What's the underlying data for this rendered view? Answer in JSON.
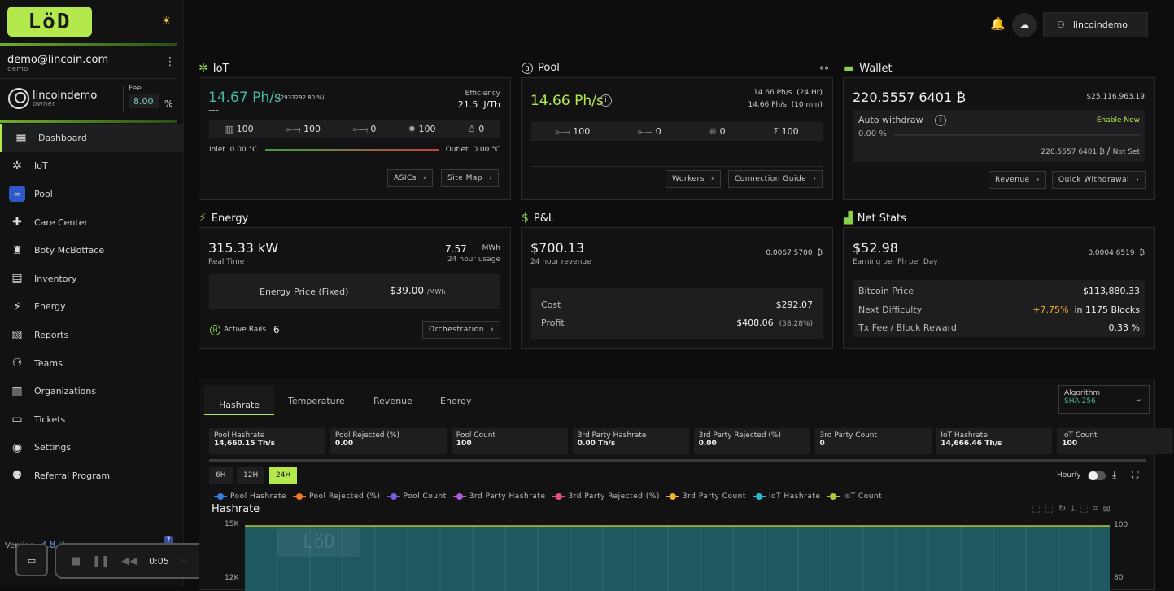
{
  "app": {
    "logo_text": "LöD",
    "user_email": "demo@lincoin.com",
    "user_role": "demo",
    "org_name": "lincoindemo",
    "org_role": "owner",
    "fee_label": "Fee",
    "fee_value": "8.00",
    "fee_unit": "%",
    "version_label": "Version:",
    "version_value": "3.8.3",
    "help_glyph": "?"
  },
  "nav": [
    {
      "label": "Dashboard",
      "icon": "grid-icon",
      "glyph": "▦",
      "active": true
    },
    {
      "label": "IoT",
      "icon": "network-icon",
      "glyph": "✲"
    },
    {
      "label": "Pool",
      "icon": "pool-icon",
      "glyph": "∞"
    },
    {
      "label": "Care Center",
      "icon": "first-aid-icon",
      "glyph": "✚"
    },
    {
      "label": "Boty McBotface",
      "icon": "bot-icon",
      "glyph": "♜"
    },
    {
      "label": "Inventory",
      "icon": "inventory-icon",
      "glyph": "▤"
    },
    {
      "label": "Energy",
      "icon": "bolt-icon",
      "glyph": "⚡"
    },
    {
      "label": "Reports",
      "icon": "report-icon",
      "glyph": "▧"
    },
    {
      "label": "Teams",
      "icon": "teams-icon",
      "glyph": "⚇"
    },
    {
      "label": "Organizations",
      "icon": "building-icon",
      "glyph": "▥"
    },
    {
      "label": "Tickets",
      "icon": "ticket-icon",
      "glyph": "▭"
    },
    {
      "label": "Settings",
      "icon": "gear-icon",
      "glyph": "◉"
    },
    {
      "label": "Referral Program",
      "icon": "referral-icon",
      "glyph": "⚉"
    }
  ],
  "recorder": {
    "time": "0:05"
  },
  "topbar": {
    "username": "lincoindemo"
  },
  "iot": {
    "title": "IoT",
    "hashrate": "14.67 Ph/s",
    "hashrate_pct": "(2933292.80 %)",
    "sub": "---",
    "efficiency_label": "Efficiency",
    "efficiency_value": "21.5",
    "efficiency_unit": "J/Th",
    "stats": [
      "100",
      "100",
      "0",
      "100",
      "0"
    ],
    "inlet_label": "Inlet",
    "inlet_value": "0.00 °C",
    "outlet_label": "Outlet",
    "outlet_value": "0.00 °C",
    "btn_asics": "ASICs",
    "btn_sitemap": "Site Map"
  },
  "pool": {
    "title": "Pool",
    "hashrate": "14.66 Ph/s",
    "hr24": "14.66 Ph/s",
    "hr24_label": "(24 Hr)",
    "hr10": "14.66 Ph/s",
    "hr10_label": "(10 min)",
    "stats": [
      "100",
      "0",
      "0",
      "100"
    ],
    "btn_workers": "Workers",
    "btn_guide": "Connection Guide"
  },
  "wallet": {
    "title": "Wallet",
    "balance": "220.5557 6401",
    "btc_symbol": "₿",
    "usd": "$25,116,963.19",
    "auto_label": "Auto withdraw",
    "enable": "Enable Now",
    "pct": "0.00 %",
    "progress": 0,
    "threshold": "220.5557 6401",
    "threshold_slash": "/",
    "not_set": "Not Set",
    "btn_revenue": "Revenue",
    "btn_quick": "Quick Withdrawal"
  },
  "energy": {
    "title": "Energy",
    "power": "315.33",
    "power_unit": "kW",
    "realtime": "Real Time",
    "usage": "7.57",
    "usage_unit": "MWh",
    "usage_label": "24 hour usage",
    "price_label": "Energy Price (Fixed)",
    "price_value": "$39.00",
    "price_unit": "/MWh",
    "rails_label": "Active Rails",
    "rails_value": "6",
    "btn_orch": "Orchestration"
  },
  "pnl": {
    "title": "P&L",
    "revenue": "$700.13",
    "revenue_label": "24 hour revenue",
    "btc": "0.0067 5700",
    "cost_label": "Cost",
    "cost_value": "$292.07",
    "profit_label": "Profit",
    "profit_value": "$408.06",
    "profit_pct": "(58.28%)"
  },
  "netstats": {
    "title": "Net Stats",
    "earning": "$52.98",
    "earning_label": "Earning per Ph per Day",
    "btc": "0.0004 6519",
    "btc_price_label": "Bitcoin Price",
    "btc_price_value": "$113,880.33",
    "difficulty_label": "Next Difficulty",
    "difficulty_pct": "+7.75%",
    "difficulty_blocks": "in 1175 Blocks",
    "txfee_label": "Tx Fee / Block Reward",
    "txfee_value": "0.33 %"
  },
  "chart": {
    "tabs": [
      "Hashrate",
      "Temperature",
      "Revenue",
      "Energy"
    ],
    "algo_label": "Algorithm",
    "algo_value": "SHA-256",
    "stats": [
      {
        "label": "Pool Hashrate",
        "value": "14,660.15 Th/s"
      },
      {
        "label": "Pool Rejected (%)",
        "value": "0.00"
      },
      {
        "label": "Pool Count",
        "value": "100"
      },
      {
        "label": "3rd Party Hashrate",
        "value": "0.00 Th/s"
      },
      {
        "label": "3rd Party Rejected (%)",
        "value": "0.00"
      },
      {
        "label": "3rd Party Count",
        "value": "0"
      },
      {
        "label": "IoT Hashrate",
        "value": "14,666.46 Th/s"
      },
      {
        "label": "IoT Count",
        "value": "100"
      }
    ],
    "ranges": [
      "6H",
      "12H",
      "24H"
    ],
    "hourly_label": "Hourly",
    "title": "Hashrate",
    "legend": [
      {
        "name": "Pool Hashrate",
        "color": "#3b7de0"
      },
      {
        "name": "Pool Rejected (%)",
        "color": "#f0792a"
      },
      {
        "name": "Pool Count",
        "color": "#7c5ce0"
      },
      {
        "name": "3rd Party Hashrate",
        "color": "#b05ad8"
      },
      {
        "name": "3rd Party Rejected (%)",
        "color": "#e0508a"
      },
      {
        "name": "3rd Party Count",
        "color": "#f0b030"
      },
      {
        "name": "IoT Hashrate",
        "color": "#29b8d0"
      },
      {
        "name": "IoT Count",
        "color": "#b8c43a"
      }
    ],
    "y_left": [
      "15K",
      "12K"
    ],
    "y_right": [
      "100",
      "80"
    ]
  },
  "colors": {
    "accent": "#b4e94e",
    "teal": "#46b6a2",
    "orange": "#f0b030"
  }
}
